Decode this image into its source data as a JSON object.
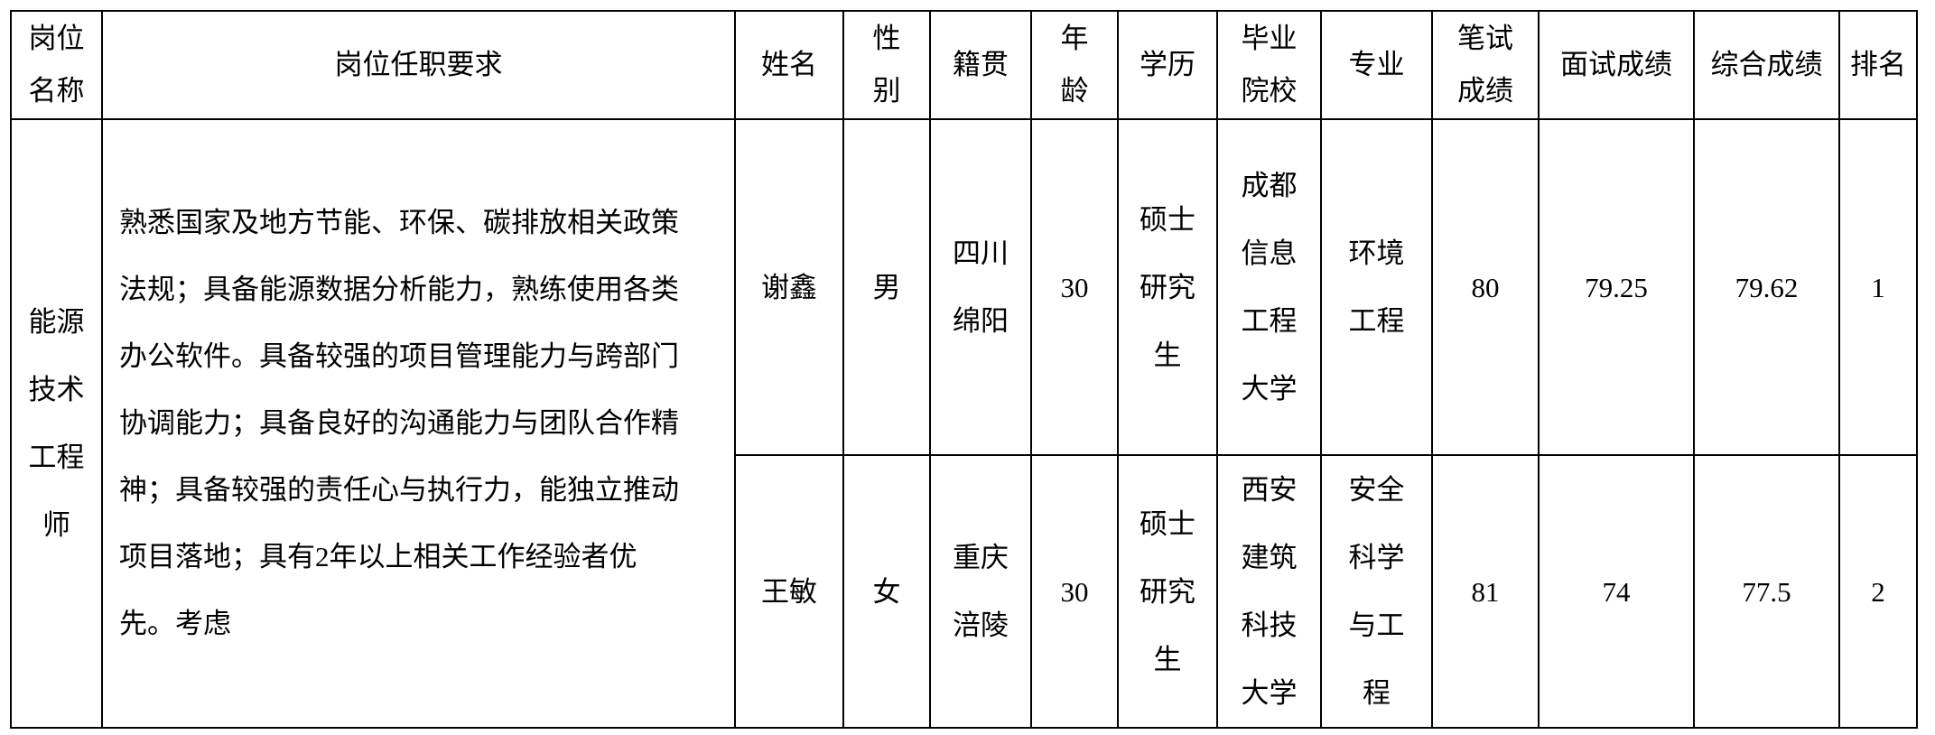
{
  "headers": {
    "position": "岗位名称",
    "requirements": "岗位任职要求",
    "name": "姓名",
    "gender": "性别",
    "origin": "籍贯",
    "age": "年龄",
    "education": "学历",
    "school": "毕业院校",
    "major": "专业",
    "written": "笔试成绩",
    "interview": "面试成绩",
    "total": "综合成绩",
    "rank": "排名"
  },
  "position": "能源技术工程师",
  "requirements": "熟悉国家及地方节能、环保、碳排放相关政策法规；具备能源数据分析能力，熟练使用各类办公软件。具备较强的项目管理能力与跨部门协调能力；具备良好的沟通能力与团队合作精神；具备较强的责任心与执行力，能独立推动项目落地；具有2年以上相关工作经验者优先。考虑",
  "rows": [
    {
      "name": "谢鑫",
      "gender": "男",
      "origin": "四川绵阳",
      "age": "30",
      "education": "硕士研究生",
      "school": "成都信息工程大学",
      "major": "环境工程",
      "written": "80",
      "interview": "79.25",
      "total": "79.62",
      "rank": "1"
    },
    {
      "name": "王敏",
      "gender": "女",
      "origin": "重庆涪陵",
      "age": "30",
      "education": "硕士研究生",
      "school": "西安建筑科技大学",
      "major": "安全科学与工程",
      "written": "81",
      "interview": "74",
      "total": "77.5",
      "rank": "2"
    }
  ]
}
